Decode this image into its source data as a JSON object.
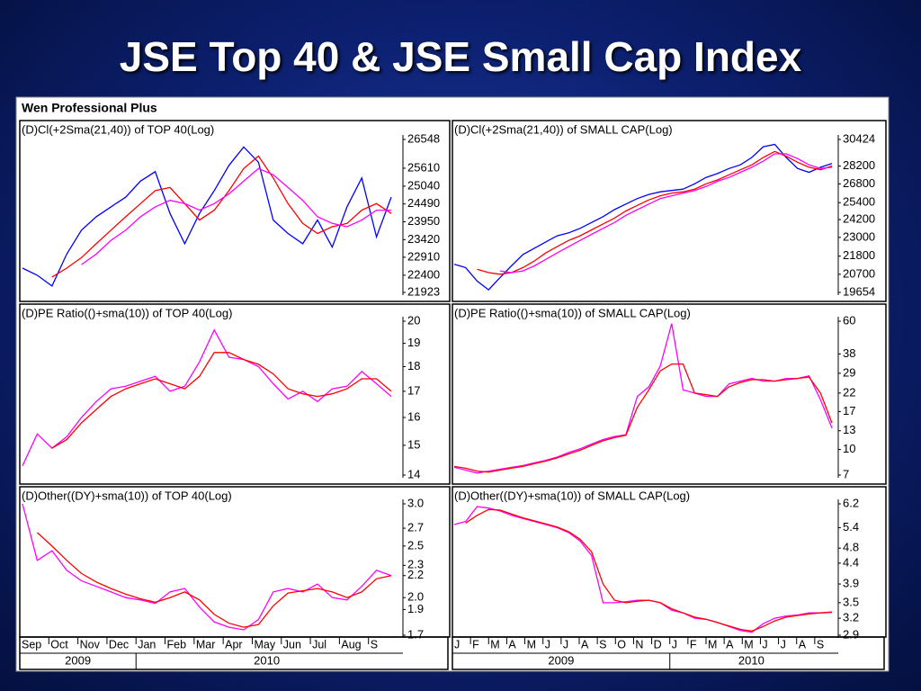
{
  "slide_title": "JSE Top 40 & JSE Small Cap Index",
  "window_title": "Wen Professional Plus",
  "chart_data": [
    {
      "type": "line",
      "title": "(D)Cl(+2Sma(21,40)) of TOP 40(Log)",
      "log": true,
      "ylim": [
        21923,
        26548
      ],
      "yticks": [
        26548,
        25610,
        25040,
        24490,
        23950,
        23420,
        22910,
        22400,
        21923
      ],
      "series": [
        {
          "color": "#0000ff",
          "values": [
            22600,
            22400,
            22100,
            23000,
            23700,
            24100,
            24400,
            24700,
            25200,
            25500,
            24200,
            23300,
            24200,
            24900,
            25700,
            26300,
            25800,
            24000,
            23600,
            23300,
            24000,
            23200,
            24400,
            25300,
            23500,
            24700
          ]
        },
        {
          "color": "#ff0000",
          "values": [
            null,
            null,
            22350,
            22600,
            22900,
            23300,
            23700,
            24100,
            24500,
            24900,
            25000,
            24500,
            24000,
            24300,
            24900,
            25600,
            26000,
            25300,
            24500,
            23900,
            23600,
            23800,
            23900,
            24300,
            24500,
            24200
          ]
        },
        {
          "color": "#ff00ff",
          "values": [
            null,
            null,
            null,
            null,
            22700,
            23000,
            23400,
            23700,
            24100,
            24400,
            24600,
            24500,
            24300,
            24500,
            24800,
            25200,
            25600,
            25400,
            25000,
            24600,
            24100,
            23900,
            23800,
            24000,
            24300,
            24300
          ]
        }
      ]
    },
    {
      "type": "line",
      "title": "(D)Cl(+2Sma(21,40)) of SMALL CAP(Log)",
      "log": true,
      "ylim": [
        19654,
        30424
      ],
      "yticks": [
        30424,
        28200,
        26800,
        25400,
        24200,
        23000,
        21800,
        20700,
        19654
      ],
      "series": [
        {
          "color": "#0000ff",
          "values": [
            21300,
            21100,
            20300,
            19800,
            20500,
            21200,
            21900,
            22300,
            22700,
            23100,
            23300,
            23600,
            24000,
            24400,
            24900,
            25300,
            25700,
            26000,
            26200,
            26300,
            26400,
            26800,
            27300,
            27600,
            28000,
            28300,
            28900,
            29800,
            30000,
            28900,
            28000,
            27700,
            28100,
            28400
          ]
        },
        {
          "color": "#ff0000",
          "values": [
            null,
            null,
            21000,
            20800,
            20700,
            20800,
            21100,
            21500,
            22000,
            22400,
            22800,
            23100,
            23500,
            23900,
            24300,
            24800,
            25200,
            25600,
            25900,
            26100,
            26200,
            26400,
            26800,
            27100,
            27500,
            27900,
            28300,
            28900,
            29400,
            29000,
            28500,
            28100,
            27900,
            28200
          ]
        },
        {
          "color": "#ff00ff",
          "values": [
            null,
            null,
            null,
            null,
            20900,
            20800,
            20900,
            21200,
            21600,
            22000,
            22400,
            22800,
            23200,
            23600,
            24000,
            24500,
            24900,
            25300,
            25700,
            25900,
            26100,
            26300,
            26600,
            27000,
            27300,
            27700,
            28100,
            28600,
            29200,
            29200,
            28800,
            28300,
            28000,
            28100
          ]
        }
      ]
    },
    {
      "type": "line",
      "title": "(D)PE Ratio(()+sma(10)) of TOP 40(Log)",
      "log": true,
      "ylim": [
        14,
        20
      ],
      "yticks": [
        20,
        19,
        18,
        17,
        16,
        15,
        14
      ],
      "series": [
        {
          "color": "#ff00ff",
          "values": [
            14.3,
            15.4,
            14.9,
            15.3,
            16.0,
            16.6,
            17.1,
            17.2,
            17.4,
            17.6,
            17.0,
            17.2,
            18.2,
            19.6,
            18.4,
            18.3,
            18.0,
            17.3,
            16.7,
            17.0,
            16.6,
            17.1,
            17.2,
            17.8,
            17.3,
            16.8
          ]
        },
        {
          "color": "#ff0000",
          "values": [
            null,
            null,
            14.9,
            15.2,
            15.8,
            16.3,
            16.8,
            17.1,
            17.3,
            17.5,
            17.3,
            17.1,
            17.6,
            18.6,
            18.6,
            18.3,
            18.1,
            17.7,
            17.1,
            16.9,
            16.8,
            16.9,
            17.1,
            17.5,
            17.5,
            17.0
          ]
        }
      ]
    },
    {
      "type": "line",
      "title": "(D)PE Ratio(()+sma(10)) of SMALL CAP(Log)",
      "log": true,
      "ylim": [
        7,
        60
      ],
      "yticks": [
        60,
        38,
        29,
        22,
        17,
        13,
        10,
        7
      ],
      "series": [
        {
          "color": "#ff00ff",
          "values": [
            7.8,
            7.5,
            7.2,
            7.4,
            7.6,
            7.8,
            8.0,
            8.3,
            8.6,
            9.0,
            9.6,
            10.1,
            10.8,
            11.5,
            12.0,
            12.3,
            21,
            24,
            32,
            58,
            23,
            22,
            21,
            21,
            25,
            26,
            27,
            26,
            26,
            27,
            27,
            28,
            20,
            13.5
          ]
        },
        {
          "color": "#ff0000",
          "values": [
            7.9,
            7.7,
            7.4,
            7.3,
            7.5,
            7.7,
            7.9,
            8.2,
            8.5,
            8.9,
            9.4,
            9.9,
            10.6,
            11.3,
            11.8,
            12.2,
            18,
            23,
            30,
            33,
            33,
            22,
            21.5,
            21,
            24,
            25.5,
            26.5,
            26.5,
            26,
            26.5,
            27,
            27.5,
            22,
            14.5
          ]
        }
      ]
    },
    {
      "type": "line",
      "title": "(D)Other((DY)+sma(10)) of TOP 40(Log)",
      "log": true,
      "ylim": [
        1.7,
        3.0
      ],
      "yticks": [
        {
          "value": 3.0,
          "label": "3.0"
        },
        2.7,
        2.5,
        2.3,
        2.2,
        {
          "value": 2.0,
          "label": "2.0"
        },
        1.9,
        1.7
      ],
      "xtick_labels": [
        "Sep",
        "Oct",
        "Nov",
        "Dec",
        "Jan",
        "Feb",
        "Mar",
        "Apr",
        "May",
        "Jun",
        "Jul",
        "Aug",
        "S"
      ],
      "year_labels": [
        "2009",
        "2010"
      ],
      "series": [
        {
          "color": "#ff00ff",
          "values": [
            3.0,
            2.35,
            2.45,
            2.25,
            2.15,
            2.1,
            2.05,
            2.0,
            1.98,
            1.95,
            2.05,
            2.08,
            1.92,
            1.8,
            1.76,
            1.74,
            1.82,
            2.05,
            2.08,
            2.05,
            2.12,
            2.0,
            1.98,
            2.1,
            2.25,
            2.2
          ]
        },
        {
          "color": "#ff0000",
          "values": [
            null,
            2.65,
            2.5,
            2.35,
            2.22,
            2.14,
            2.08,
            2.03,
            1.99,
            1.96,
            2.0,
            2.05,
            1.98,
            1.86,
            1.79,
            1.76,
            1.78,
            1.93,
            2.04,
            2.06,
            2.08,
            2.05,
            2.0,
            2.05,
            2.17,
            2.2
          ]
        }
      ]
    },
    {
      "type": "line",
      "title": "(D)Other((DY)+sma(10)) of SMALL CAP(Log)",
      "log": true,
      "ylim": [
        2.9,
        6.2
      ],
      "yticks": [
        6.2,
        5.4,
        4.8,
        4.4,
        3.9,
        3.5,
        3.2,
        2.9
      ],
      "xtick_labels": [
        "J",
        "F",
        "M",
        "A",
        "M",
        "J",
        "J",
        "A",
        "S",
        "O",
        "N",
        "D",
        "J",
        "F",
        "M",
        "A",
        "M",
        "J",
        "J",
        "A",
        "S"
      ],
      "year_labels": [
        "2009",
        "2010"
      ],
      "series": [
        {
          "color": "#ff00ff",
          "values": [
            5.5,
            5.6,
            6.1,
            6.05,
            5.95,
            5.8,
            5.7,
            5.6,
            5.5,
            5.4,
            5.25,
            5.0,
            4.6,
            3.5,
            3.5,
            3.52,
            3.55,
            3.55,
            3.5,
            3.35,
            3.3,
            3.2,
            3.18,
            3.12,
            3.05,
            2.98,
            2.95,
            3.1,
            3.2,
            3.24,
            3.26,
            3.3,
            3.3,
            3.32
          ]
        },
        {
          "color": "#ff0000",
          "values": [
            null,
            5.55,
            5.8,
            6.0,
            5.98,
            5.85,
            5.72,
            5.62,
            5.52,
            5.42,
            5.28,
            5.05,
            4.7,
            3.9,
            3.55,
            3.5,
            3.53,
            3.55,
            3.5,
            3.38,
            3.3,
            3.22,
            3.18,
            3.12,
            3.06,
            3.0,
            2.97,
            3.05,
            3.15,
            3.22,
            3.25,
            3.28,
            3.3,
            3.31
          ]
        }
      ]
    }
  ]
}
